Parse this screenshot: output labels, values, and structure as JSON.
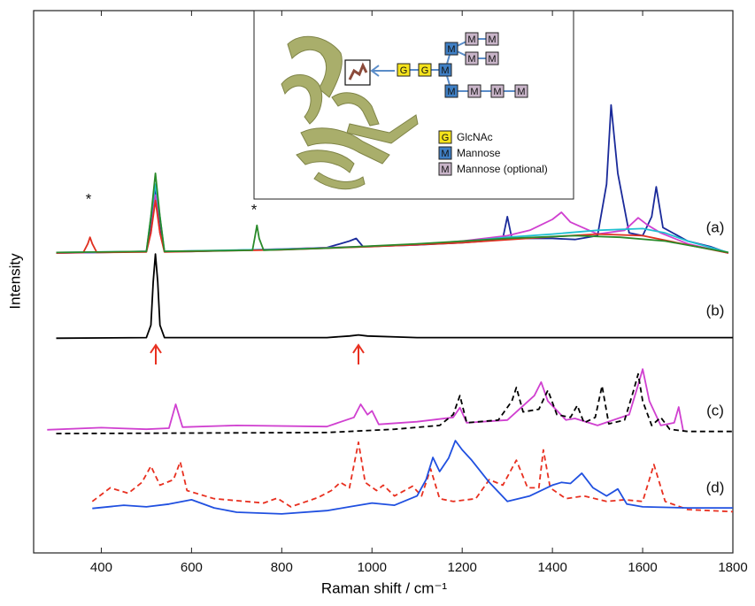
{
  "chart_data": {
    "type": "line",
    "xlabel": "Raman shift / cm⁻¹",
    "ylabel": "Intensity",
    "xlim": [
      250,
      1800
    ],
    "ylim": [
      0,
      100
    ],
    "xticks": [
      400,
      600,
      800,
      1000,
      1200,
      1400,
      1600,
      1800
    ],
    "annotations": [
      "(a)",
      "(b)",
      "(c)",
      "(d)",
      "*",
      "*"
    ],
    "series": [
      {
        "color": "#1a2a9a",
        "dash": false,
        "x": [
          300,
          400,
          500,
          510,
          520,
          530,
          540,
          600,
          700,
          800,
          900,
          950,
          965,
          980,
          1100,
          1200,
          1250,
          1290,
          1300,
          1310,
          1400,
          1450,
          1500,
          1520,
          1530,
          1545,
          1570,
          1600,
          1620,
          1630,
          1645,
          1700,
          1750,
          1790
        ],
        "values": [
          55.3,
          55.4,
          55.6,
          60,
          67,
          60,
          55.6,
          55.6,
          55.8,
          56.0,
          56.3,
          57.5,
          58,
          56.5,
          56.8,
          57.2,
          57.5,
          58,
          62,
          58,
          58,
          57.8,
          58.5,
          68,
          82.6,
          70,
          59,
          58.5,
          62,
          67.5,
          60,
          57.5,
          56.5,
          55.3
        ]
      },
      {
        "color": "#d040d0",
        "dash": false,
        "x": [
          300,
          500,
          510,
          520,
          530,
          540,
          700,
          900,
          1100,
          1200,
          1300,
          1350,
          1400,
          1420,
          1440,
          1500,
          1560,
          1590,
          1610,
          1640,
          1700,
          1790
        ],
        "values": [
          55.3,
          55.6,
          59,
          66,
          59,
          55.6,
          55.8,
          56.3,
          56.8,
          57.5,
          58.5,
          59.5,
          61.5,
          62.8,
          61,
          58.8,
          59.5,
          61.8,
          60.5,
          59,
          57,
          55.3
        ]
      },
      {
        "color": "#20c0d0",
        "dash": false,
        "x": [
          300,
          500,
          510,
          520,
          530,
          540,
          800,
          1000,
          1200,
          1300,
          1400,
          1500,
          1600,
          1650,
          1700,
          1790
        ],
        "values": [
          55.4,
          55.6,
          62,
          68,
          62,
          55.6,
          56,
          56.5,
          57.4,
          58.2,
          58.8,
          59.5,
          59.8,
          59,
          57.5,
          55.4
        ]
      },
      {
        "color": "#e03020",
        "dash": false,
        "x": [
          300,
          360,
          370,
          375,
          380,
          390,
          500,
          510,
          520,
          530,
          540,
          800,
          1000,
          1200,
          1400,
          1500,
          1600,
          1700,
          1790
        ],
        "values": [
          55.3,
          55.4,
          57,
          58.2,
          57,
          55.4,
          55.5,
          59,
          65,
          59,
          55.5,
          55.9,
          56.5,
          57.2,
          58.3,
          58.8,
          58.5,
          56.8,
          55.3
        ]
      },
      {
        "color": "#2a8a2a",
        "dash": false,
        "x": [
          300,
          500,
          510,
          520,
          530,
          540,
          735,
          740,
          745,
          750,
          760,
          900,
          1100,
          1300,
          1450,
          1550,
          1650,
          1790
        ],
        "values": [
          55.4,
          55.6,
          62,
          70,
          62,
          55.6,
          55.8,
          58,
          60.4,
          58,
          55.8,
          56.2,
          57,
          58,
          58.5,
          58.2,
          57.5,
          55.4
        ]
      },
      {
        "color": "#000000",
        "dash": false,
        "x": [
          300,
          500,
          510,
          515,
          520,
          525,
          530,
          540,
          900,
          950,
          970,
          990,
          1100,
          1400,
          1800
        ],
        "values": [
          39.6,
          39.7,
          42,
          50,
          55.1,
          50,
          42,
          39.7,
          39.7,
          40,
          40.2,
          40,
          39.7,
          39.7,
          39.7
        ]
      },
      {
        "color": "#d040d0",
        "dash": false,
        "x": [
          280,
          400,
          500,
          550,
          565,
          580,
          700,
          900,
          960,
          975,
          990,
          1000,
          1015,
          1100,
          1180,
          1195,
          1210,
          1300,
          1360,
          1375,
          1390,
          1430,
          1450,
          1500,
          1570,
          1590,
          1600,
          1615,
          1640,
          1670,
          1680,
          1690
        ],
        "values": [
          22.7,
          23.1,
          22.8,
          23,
          27.4,
          23.2,
          23.5,
          23.3,
          25,
          27.4,
          25.5,
          26.2,
          23.7,
          24.2,
          25,
          26.8,
          24,
          24.5,
          29,
          31.5,
          28,
          24.5,
          24.8,
          23.5,
          25.5,
          31,
          33.9,
          28,
          23.5,
          24,
          26.9,
          22.5
        ]
      },
      {
        "color": "#000000",
        "dash": true,
        "x": [
          300,
          600,
          900,
          1050,
          1150,
          1180,
          1195,
          1210,
          1280,
          1310,
          1320,
          1335,
          1370,
          1390,
          1410,
          1440,
          1455,
          1470,
          1495,
          1510,
          1525,
          1560,
          1580,
          1590,
          1600,
          1620,
          1640,
          1660,
          1700,
          1800
        ],
        "values": [
          22,
          22.1,
          22.2,
          22.8,
          23.5,
          25.5,
          29,
          24,
          24.5,
          28,
          30.5,
          26,
          26.5,
          30,
          25.5,
          25,
          27.2,
          24,
          25,
          30.8,
          23.8,
          24.5,
          30,
          33,
          28,
          23.5,
          25,
          22.8,
          22.4,
          22.4
        ]
      },
      {
        "color": "#e83020",
        "dash": true,
        "x": [
          380,
          420,
          460,
          490,
          510,
          530,
          560,
          575,
          590,
          650,
          760,
          790,
          820,
          880,
          910,
          930,
          950,
          970,
          985,
          1010,
          1025,
          1050,
          1090,
          1110,
          1130,
          1150,
          1180,
          1230,
          1260,
          1290,
          1320,
          1345,
          1370,
          1380,
          1395,
          1430,
          1470,
          1520,
          1560,
          1600,
          1625,
          1650,
          1700,
          1800
        ],
        "values": [
          9.5,
          12,
          11,
          13,
          16,
          12.5,
          13.5,
          16.8,
          11.5,
          10,
          9.2,
          10.1,
          8.5,
          10.2,
          11.5,
          13,
          12,
          20.4,
          13,
          11.5,
          12.5,
          10.5,
          12.3,
          10.5,
          15.5,
          10,
          9.5,
          10,
          13.5,
          12.5,
          17.1,
          12,
          12,
          19,
          12,
          10,
          10.5,
          9.5,
          9.8,
          9.5,
          16.3,
          9.5,
          8,
          7.6
        ]
      },
      {
        "color": "#2050e0",
        "dash": false,
        "x": [
          380,
          450,
          500,
          550,
          600,
          650,
          700,
          800,
          900,
          950,
          1000,
          1050,
          1100,
          1120,
          1135,
          1150,
          1170,
          1185,
          1200,
          1220,
          1260,
          1300,
          1350,
          1400,
          1420,
          1440,
          1465,
          1490,
          1520,
          1545,
          1565,
          1600,
          1700,
          1800
        ],
        "values": [
          8.2,
          8.8,
          8.5,
          9,
          9.8,
          8.3,
          7.5,
          7.2,
          7.8,
          8.5,
          9.2,
          8.8,
          10.5,
          13.5,
          17.6,
          15,
          17.5,
          20.7,
          19,
          17.2,
          13,
          9.5,
          10.5,
          12.5,
          13,
          12.8,
          14.7,
          12,
          10.5,
          11.8,
          9,
          8.5,
          8.3,
          8.3
        ]
      }
    ],
    "inset": {
      "nodes": [
        "G",
        "G",
        "M",
        "M",
        "M",
        "M",
        "M",
        "M",
        "M",
        "M",
        "M",
        "M"
      ],
      "legend": [
        {
          "symbol": "G",
          "label": "GlcNAc"
        },
        {
          "symbol": "M",
          "label": "Mannose"
        },
        {
          "symbol": "M",
          "label": "Mannose (optional)"
        }
      ]
    }
  }
}
